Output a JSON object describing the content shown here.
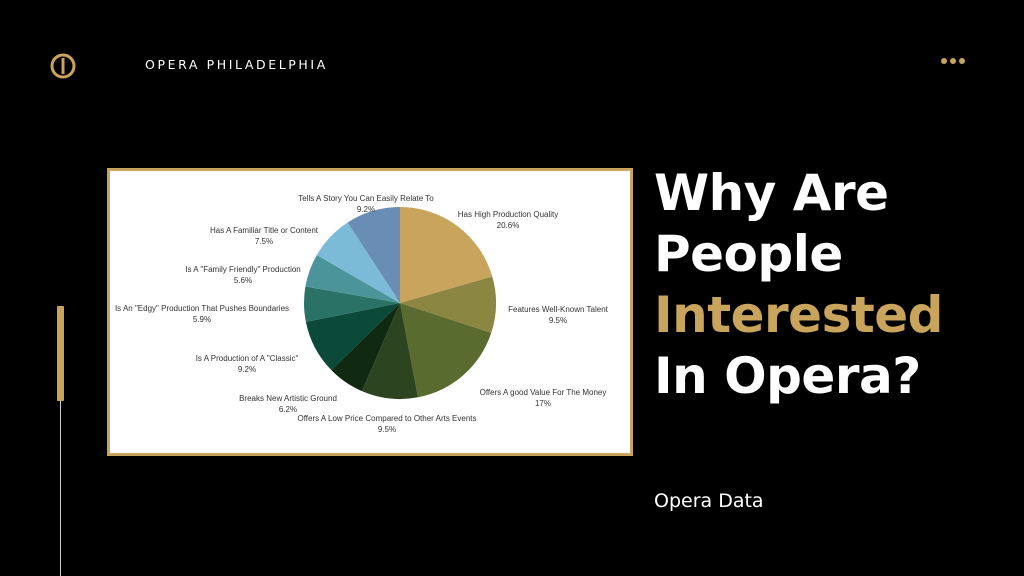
{
  "header": {
    "brand": "OPERA PHILADELPHIA",
    "logo_icon": "opera-o-logo",
    "menu_icon": "more-dots-icon"
  },
  "colors": {
    "accent": "#c9a45c",
    "background": "#000000"
  },
  "title": {
    "line1": "Why Are",
    "line2": "People",
    "line3": "Interested",
    "line4": "In Opera?"
  },
  "subtitle": "Opera Data",
  "chart_data": {
    "type": "pie",
    "slices": [
      {
        "name": "Has High Production Quality",
        "value": 20.6,
        "label": "20.6%",
        "color": "#c9a45c"
      },
      {
        "name": "Features Well-Known Talent",
        "value": 9.5,
        "label": "9.5%",
        "color": "#8c8643"
      },
      {
        "name": "Offers A good Value For The Money",
        "value": 17,
        "label": "17%",
        "color": "#5a6b2f"
      },
      {
        "name": "Offers A Low Price Compared to Other Arts Events",
        "value": 9.5,
        "label": "9.5%",
        "color": "#2d4420"
      },
      {
        "name": "Breaks New Artistic Ground",
        "value": 6.2,
        "label": "6.2%",
        "color": "#0f2a10"
      },
      {
        "name": "Is A Production of A \"Classic\"",
        "value": 9.2,
        "label": "9.2%",
        "color": "#0b4a38"
      },
      {
        "name": "Is An \"Edgy\" Production That Pushes Boundaries",
        "value": 5.9,
        "label": "5.9%",
        "color": "#2a7266"
      },
      {
        "name": "Is A \"Family Friendly\" Production",
        "value": 5.6,
        "label": "5.6%",
        "color": "#4b959a"
      },
      {
        "name": "Has A Familiar Title or Content",
        "value": 7.5,
        "label": "7.5%",
        "color": "#7cbbd8"
      },
      {
        "name": "Tells A Story You Can Easily Relate To",
        "value": 9.2,
        "label": "9.2%",
        "color": "#6a8db5"
      }
    ]
  }
}
